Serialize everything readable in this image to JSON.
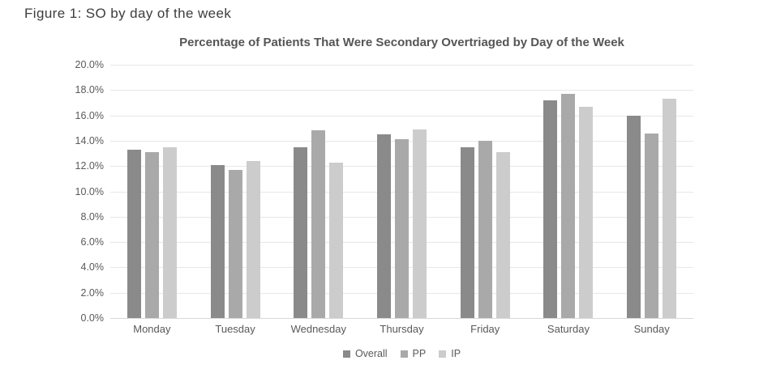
{
  "figure_caption": "Figure 1: SO by day of the week",
  "chart_data": {
    "type": "bar",
    "title": "Percentage of Patients That Were Secondary Overtriaged by Day of the Week",
    "categories": [
      "Monday",
      "Tuesday",
      "Wednesday",
      "Thursday",
      "Friday",
      "Saturday",
      "Sunday"
    ],
    "series": [
      {
        "name": "Overall",
        "color": "#8a8a8a",
        "values": [
          13.3,
          12.1,
          13.5,
          14.5,
          13.5,
          17.2,
          16.0
        ]
      },
      {
        "name": "PP",
        "color": "#a9a9a9",
        "values": [
          13.1,
          11.7,
          14.8,
          14.1,
          14.0,
          17.7,
          14.6
        ]
      },
      {
        "name": "IP",
        "color": "#cccccc",
        "values": [
          13.5,
          12.4,
          12.3,
          14.9,
          13.1,
          16.7,
          17.3
        ]
      }
    ],
    "unit": "%",
    "ylim": [
      0,
      20
    ],
    "ytick_step": 2,
    "ytick_labels": [
      "0.0%",
      "2.0%",
      "4.0%",
      "6.0%",
      "8.0%",
      "10.0%",
      "12.0%",
      "14.0%",
      "16.0%",
      "18.0%",
      "20.0%"
    ],
    "grid": "horizontal",
    "legend_position": "bottom"
  }
}
